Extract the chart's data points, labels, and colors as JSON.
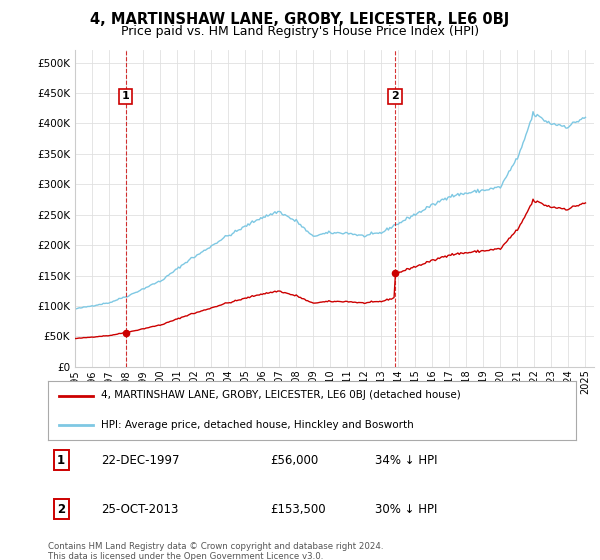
{
  "title": "4, MARTINSHAW LANE, GROBY, LEICESTER, LE6 0BJ",
  "subtitle": "Price paid vs. HM Land Registry's House Price Index (HPI)",
  "title_fontsize": 10.5,
  "subtitle_fontsize": 9,
  "background_color": "#ffffff",
  "plot_bg_color": "#ffffff",
  "grid_color": "#e0e0e0",
  "hpi_color": "#7ec8e3",
  "price_color": "#cc0000",
  "vline_color": "#cc0000",
  "yticks": [
    0,
    50000,
    100000,
    150000,
    200000,
    250000,
    300000,
    350000,
    400000,
    450000,
    500000
  ],
  "ytick_labels": [
    "£0",
    "£50K",
    "£100K",
    "£150K",
    "£200K",
    "£250K",
    "£300K",
    "£350K",
    "£400K",
    "£450K",
    "£500K"
  ],
  "legend_entries": [
    {
      "label": "4, MARTINSHAW LANE, GROBY, LEICESTER, LE6 0BJ (detached house)",
      "color": "#cc0000"
    },
    {
      "label": "HPI: Average price, detached house, Hinckley and Bosworth",
      "color": "#7ec8e3"
    }
  ],
  "annotations": [
    {
      "num": "1",
      "date": "22-DEC-1997",
      "price": "£56,000",
      "hpi_rel": "34% ↓ HPI",
      "x_year": 1997.97
    },
    {
      "num": "2",
      "date": "25-OCT-2013",
      "price": "£153,500",
      "hpi_rel": "30% ↓ HPI",
      "x_year": 2013.81
    }
  ],
  "annotation1_price": 56000,
  "annotation2_price": 153500,
  "footnote": "Contains HM Land Registry data © Crown copyright and database right 2024.\nThis data is licensed under the Open Government Licence v3.0.",
  "xmin": 1995.0,
  "xmax": 2025.5,
  "ymin": 0,
  "ymax": 520000
}
